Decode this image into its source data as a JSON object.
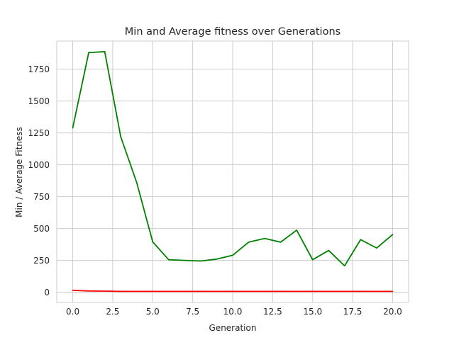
{
  "chart_data": {
    "type": "line",
    "title": "Min and Average fitness over Generations",
    "xlabel": "Generation",
    "ylabel": "Min / Average Fitness",
    "xlim": [
      -1,
      21
    ],
    "ylim": [
      -80,
      1970
    ],
    "xticks": [
      0,
      2.5,
      5,
      7.5,
      10,
      12.5,
      15,
      17.5,
      20
    ],
    "xtick_labels": [
      "0.0",
      "2.5",
      "5.0",
      "7.5",
      "10.0",
      "12.5",
      "15.0",
      "17.5",
      "20.0"
    ],
    "yticks": [
      0,
      250,
      500,
      750,
      1000,
      1250,
      1500,
      1750
    ],
    "ytick_labels": [
      "0",
      "250",
      "500",
      "750",
      "1000",
      "1250",
      "1500",
      "1750"
    ],
    "grid": true,
    "x": [
      0,
      1,
      2,
      3,
      4,
      5,
      6,
      7,
      8,
      9,
      10,
      11,
      12,
      13,
      14,
      15,
      16,
      17,
      18,
      19,
      20
    ],
    "series": [
      {
        "color": "#ff0000",
        "values": [
          15,
          10,
          9,
          7,
          7,
          7,
          7,
          7,
          7,
          7,
          7,
          7,
          7,
          7,
          7,
          7,
          7,
          7,
          7,
          7,
          7
        ]
      },
      {
        "color": "#008000",
        "values": [
          1290,
          1880,
          1887,
          1220,
          860,
          395,
          255,
          250,
          245,
          260,
          290,
          393,
          422,
          393,
          487,
          255,
          328,
          207,
          413,
          347,
          452
        ]
      }
    ]
  }
}
